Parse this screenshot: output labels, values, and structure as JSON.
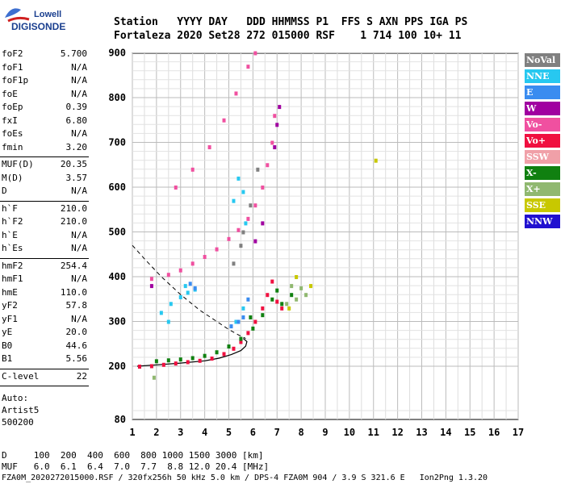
{
  "logo": {
    "line1": "Lowell",
    "line2": "DIGISONDE"
  },
  "header": {
    "line1": "Station   YYYY DAY   DDD HHMMSS P1  FFS S AXN PPS IGA PS",
    "line2": "Fortaleza 2020 Set28 272 015000 RSF    1 714 100 10+ 11"
  },
  "params_group1": [
    {
      "k": "foF2",
      "v": "5.700"
    },
    {
      "k": "foF1",
      "v": "N/A"
    },
    {
      "k": "foF1p",
      "v": "N/A"
    },
    {
      "k": "foE",
      "v": "N/A"
    },
    {
      "k": "foEp",
      "v": "0.39"
    },
    {
      "k": "fxI",
      "v": "6.80"
    },
    {
      "k": "foEs",
      "v": "N/A"
    },
    {
      "k": "fmin",
      "v": "3.20"
    }
  ],
  "params_group2": [
    {
      "k": "MUF(D)",
      "v": "20.35"
    },
    {
      "k": "M(D)",
      "v": "3.57"
    },
    {
      "k": "D",
      "v": "N/A"
    }
  ],
  "params_group3": [
    {
      "k": "h`F",
      "v": "210.0"
    },
    {
      "k": "h`F2",
      "v": "210.0"
    },
    {
      "k": "h`E",
      "v": "N/A"
    },
    {
      "k": "h`Es",
      "v": "N/A"
    }
  ],
  "params_group4": [
    {
      "k": "hmF2",
      "v": "254.4"
    },
    {
      "k": "hmF1",
      "v": "N/A"
    },
    {
      "k": "hmE",
      "v": "110.0"
    },
    {
      "k": "yF2",
      "v": "57.8"
    },
    {
      "k": "yF1",
      "v": "N/A"
    },
    {
      "k": "yE",
      "v": "20.0"
    },
    {
      "k": "B0",
      "v": "44.6"
    },
    {
      "k": "B1",
      "v": "5.56"
    }
  ],
  "c_level": {
    "k": "C-level",
    "v": "22"
  },
  "auto": [
    "Auto:",
    "Artist5",
    "500200"
  ],
  "legend": [
    {
      "label": "NoVal",
      "color": "#808080"
    },
    {
      "label": "NNE",
      "color": "#27c8f0"
    },
    {
      "label": "E",
      "color": "#3a8cf0"
    },
    {
      "label": "W",
      "color": "#a000a0"
    },
    {
      "label": "Vo-",
      "color": "#f050a0"
    },
    {
      "label": "Vo+",
      "color": "#f01040"
    },
    {
      "label": "SSW",
      "color": "#f0a0a8"
    },
    {
      "label": "X-",
      "color": "#108010"
    },
    {
      "label": "X+",
      "color": "#90b870"
    },
    {
      "label": "SSE",
      "color": "#c8c800"
    },
    {
      "label": "NNW",
      "color": "#2010d0"
    }
  ],
  "footer": {
    "row_d": "D     100  200  400  600  800 1000 1500 3000 [km]",
    "row_muf": "MUF   6.0  6.1  6.4  7.0  7.7  8.8 12.0 20.4 [MHz]",
    "status": "FZA0M_2020272015000.RSF / 320fx256h 50 kHz 5.0 km / DPS-4 FZA0M 904 / 3.9 S 321.6 E   Ion2Png 1.3.20"
  },
  "chart_data": {
    "type": "scatter",
    "x_ticks": [
      1,
      2,
      3,
      4,
      5,
      6,
      7,
      8,
      9,
      10,
      11,
      12,
      13,
      14,
      15,
      16,
      17
    ],
    "y_ticks": [
      80,
      200,
      300,
      400,
      500,
      600,
      700,
      800,
      900
    ],
    "xlim": [
      1,
      17
    ],
    "ylim": [
      80,
      900
    ],
    "grid": true,
    "y_scale": "nonlinear",
    "series": [
      {
        "name": "Vo+",
        "color": "#f01040",
        "points": [
          [
            1.3,
            200
          ],
          [
            1.8,
            201
          ],
          [
            2.3,
            204
          ],
          [
            2.8,
            207
          ],
          [
            3.3,
            210
          ],
          [
            3.8,
            213
          ],
          [
            4.3,
            218
          ],
          [
            4.8,
            228
          ],
          [
            5.2,
            240
          ],
          [
            5.5,
            255
          ],
          [
            5.8,
            275
          ],
          [
            6.1,
            300
          ],
          [
            6.4,
            330
          ],
          [
            6.6,
            360
          ],
          [
            6.8,
            390
          ],
          [
            7.0,
            345
          ],
          [
            7.2,
            330
          ]
        ]
      },
      {
        "name": "X-",
        "color": "#108010",
        "points": [
          [
            2.0,
            212
          ],
          [
            2.5,
            214
          ],
          [
            3.0,
            216
          ],
          [
            3.5,
            219
          ],
          [
            4.0,
            224
          ],
          [
            4.5,
            232
          ],
          [
            5.0,
            245
          ],
          [
            5.5,
            262
          ],
          [
            6.0,
            285
          ],
          [
            6.4,
            315
          ],
          [
            6.8,
            350
          ],
          [
            7.0,
            370
          ],
          [
            7.2,
            340
          ],
          [
            7.6,
            360
          ],
          [
            5.9,
            310
          ]
        ]
      },
      {
        "name": "Vo-",
        "color": "#f050a0",
        "points": [
          [
            1.8,
            396
          ],
          [
            2.5,
            405
          ],
          [
            3.0,
            415
          ],
          [
            3.5,
            430
          ],
          [
            4.0,
            445
          ],
          [
            4.5,
            462
          ],
          [
            5.0,
            485
          ],
          [
            5.4,
            505
          ],
          [
            5.8,
            530
          ],
          [
            6.1,
            560
          ],
          [
            6.4,
            600
          ],
          [
            6.6,
            650
          ],
          [
            6.8,
            700
          ],
          [
            6.9,
            760
          ],
          [
            2.8,
            600
          ],
          [
            3.5,
            640
          ],
          [
            4.2,
            690
          ],
          [
            4.8,
            750
          ],
          [
            5.3,
            810
          ],
          [
            5.8,
            870
          ],
          [
            6.1,
            900
          ]
        ]
      },
      {
        "name": "NNE",
        "color": "#27c8f0",
        "points": [
          [
            2.2,
            320
          ],
          [
            2.6,
            340
          ],
          [
            3.0,
            355
          ],
          [
            3.3,
            365
          ],
          [
            3.6,
            372
          ],
          [
            2.5,
            300
          ],
          [
            3.2,
            380
          ],
          [
            5.3,
            300
          ],
          [
            5.6,
            330
          ],
          [
            5.2,
            570
          ],
          [
            5.4,
            620
          ],
          [
            5.6,
            590
          ],
          [
            5.7,
            520
          ]
        ]
      },
      {
        "name": "E",
        "color": "#3a8cf0",
        "points": [
          [
            3.4,
            385
          ],
          [
            3.6,
            375
          ],
          [
            5.1,
            290
          ],
          [
            5.4,
            300
          ],
          [
            5.6,
            310
          ],
          [
            5.8,
            350
          ]
        ]
      },
      {
        "name": "W",
        "color": "#a000a0",
        "points": [
          [
            6.1,
            480
          ],
          [
            6.4,
            520
          ],
          [
            6.9,
            690
          ],
          [
            7.0,
            740
          ],
          [
            7.1,
            780
          ],
          [
            1.8,
            380
          ]
        ]
      },
      {
        "name": "X+",
        "color": "#90b870",
        "points": [
          [
            7.4,
            340
          ],
          [
            7.6,
            380
          ],
          [
            7.8,
            350
          ],
          [
            8.0,
            375
          ],
          [
            8.2,
            360
          ],
          [
            1.9,
            175
          ]
        ]
      },
      {
        "name": "SSE",
        "color": "#c8c800",
        "points": [
          [
            7.5,
            330
          ],
          [
            7.8,
            400
          ],
          [
            11.1,
            660
          ],
          [
            8.4,
            380
          ]
        ]
      },
      {
        "name": "NoVal",
        "color": "#808080",
        "points": [
          [
            5.2,
            430
          ],
          [
            5.5,
            470
          ],
          [
            5.6,
            500
          ],
          [
            5.9,
            560
          ],
          [
            6.2,
            640
          ]
        ]
      }
    ]
  }
}
